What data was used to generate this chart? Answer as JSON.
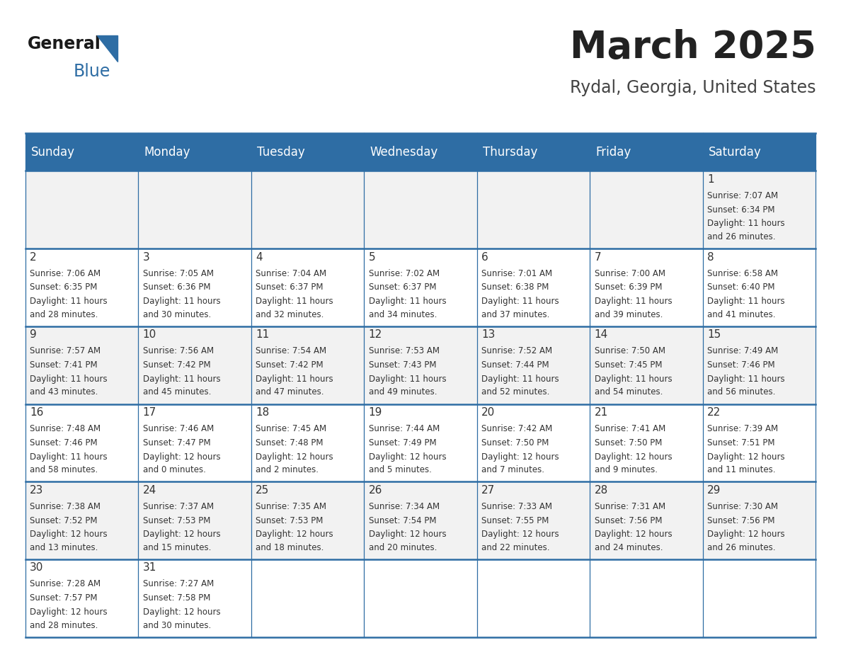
{
  "title": "March 2025",
  "subtitle": "Rydal, Georgia, United States",
  "days_of_week": [
    "Sunday",
    "Monday",
    "Tuesday",
    "Wednesday",
    "Thursday",
    "Friday",
    "Saturday"
  ],
  "header_bg": "#2E6DA4",
  "header_text": "#FFFFFF",
  "cell_bg_odd": "#F2F2F2",
  "cell_bg_even": "#FFFFFF",
  "cell_text": "#333333",
  "day_num_color": "#333333",
  "border_color": "#2E6DA4",
  "title_color": "#222222",
  "subtitle_color": "#444444",
  "calendar": [
    [
      null,
      null,
      null,
      null,
      null,
      null,
      {
        "day": 1,
        "rise": "7:07 AM",
        "set": "6:34 PM",
        "daylight": "11 hours and 26 minutes"
      }
    ],
    [
      {
        "day": 2,
        "rise": "7:06 AM",
        "set": "6:35 PM",
        "daylight": "11 hours and 28 minutes"
      },
      {
        "day": 3,
        "rise": "7:05 AM",
        "set": "6:36 PM",
        "daylight": "11 hours and 30 minutes"
      },
      {
        "day": 4,
        "rise": "7:04 AM",
        "set": "6:37 PM",
        "daylight": "11 hours and 32 minutes"
      },
      {
        "day": 5,
        "rise": "7:02 AM",
        "set": "6:37 PM",
        "daylight": "11 hours and 34 minutes"
      },
      {
        "day": 6,
        "rise": "7:01 AM",
        "set": "6:38 PM",
        "daylight": "11 hours and 37 minutes"
      },
      {
        "day": 7,
        "rise": "7:00 AM",
        "set": "6:39 PM",
        "daylight": "11 hours and 39 minutes"
      },
      {
        "day": 8,
        "rise": "6:58 AM",
        "set": "6:40 PM",
        "daylight": "11 hours and 41 minutes"
      }
    ],
    [
      {
        "day": 9,
        "rise": "7:57 AM",
        "set": "7:41 PM",
        "daylight": "11 hours and 43 minutes"
      },
      {
        "day": 10,
        "rise": "7:56 AM",
        "set": "7:42 PM",
        "daylight": "11 hours and 45 minutes"
      },
      {
        "day": 11,
        "rise": "7:54 AM",
        "set": "7:42 PM",
        "daylight": "11 hours and 47 minutes"
      },
      {
        "day": 12,
        "rise": "7:53 AM",
        "set": "7:43 PM",
        "daylight": "11 hours and 49 minutes"
      },
      {
        "day": 13,
        "rise": "7:52 AM",
        "set": "7:44 PM",
        "daylight": "11 hours and 52 minutes"
      },
      {
        "day": 14,
        "rise": "7:50 AM",
        "set": "7:45 PM",
        "daylight": "11 hours and 54 minutes"
      },
      {
        "day": 15,
        "rise": "7:49 AM",
        "set": "7:46 PM",
        "daylight": "11 hours and 56 minutes"
      }
    ],
    [
      {
        "day": 16,
        "rise": "7:48 AM",
        "set": "7:46 PM",
        "daylight": "11 hours and 58 minutes"
      },
      {
        "day": 17,
        "rise": "7:46 AM",
        "set": "7:47 PM",
        "daylight": "12 hours and 0 minutes"
      },
      {
        "day": 18,
        "rise": "7:45 AM",
        "set": "7:48 PM",
        "daylight": "12 hours and 2 minutes"
      },
      {
        "day": 19,
        "rise": "7:44 AM",
        "set": "7:49 PM",
        "daylight": "12 hours and 5 minutes"
      },
      {
        "day": 20,
        "rise": "7:42 AM",
        "set": "7:50 PM",
        "daylight": "12 hours and 7 minutes"
      },
      {
        "day": 21,
        "rise": "7:41 AM",
        "set": "7:50 PM",
        "daylight": "12 hours and 9 minutes"
      },
      {
        "day": 22,
        "rise": "7:39 AM",
        "set": "7:51 PM",
        "daylight": "12 hours and 11 minutes"
      }
    ],
    [
      {
        "day": 23,
        "rise": "7:38 AM",
        "set": "7:52 PM",
        "daylight": "12 hours and 13 minutes"
      },
      {
        "day": 24,
        "rise": "7:37 AM",
        "set": "7:53 PM",
        "daylight": "12 hours and 15 minutes"
      },
      {
        "day": 25,
        "rise": "7:35 AM",
        "set": "7:53 PM",
        "daylight": "12 hours and 18 minutes"
      },
      {
        "day": 26,
        "rise": "7:34 AM",
        "set": "7:54 PM",
        "daylight": "12 hours and 20 minutes"
      },
      {
        "day": 27,
        "rise": "7:33 AM",
        "set": "7:55 PM",
        "daylight": "12 hours and 22 minutes"
      },
      {
        "day": 28,
        "rise": "7:31 AM",
        "set": "7:56 PM",
        "daylight": "12 hours and 24 minutes"
      },
      {
        "day": 29,
        "rise": "7:30 AM",
        "set": "7:56 PM",
        "daylight": "12 hours and 26 minutes"
      }
    ],
    [
      {
        "day": 30,
        "rise": "7:28 AM",
        "set": "7:57 PM",
        "daylight": "12 hours and 28 minutes"
      },
      {
        "day": 31,
        "rise": "7:27 AM",
        "set": "7:58 PM",
        "daylight": "12 hours and 30 minutes"
      },
      null,
      null,
      null,
      null,
      null
    ]
  ]
}
